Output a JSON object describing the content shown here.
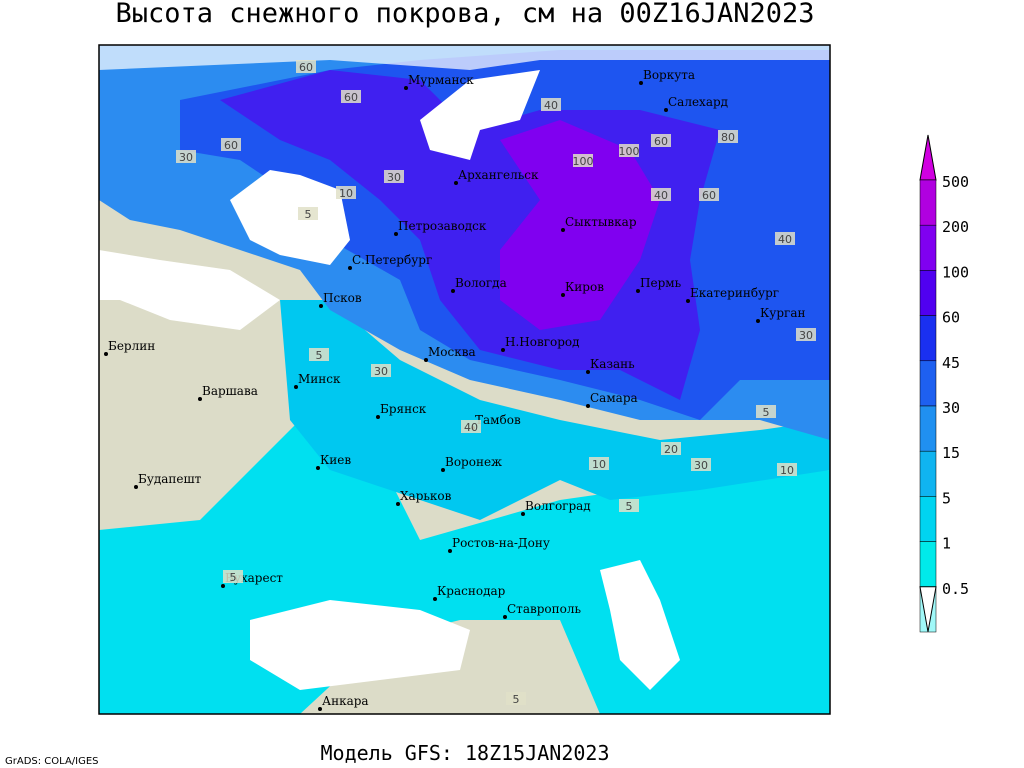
{
  "title": "Высота снежного покрова, см на 00Z16JAN2023",
  "footer_model": "Модель GFS: 18Z15JAN2023",
  "footer_credit": "GrADS: COLA/IGES",
  "legend": {
    "levels": [
      "500",
      "200",
      "100",
      "60",
      "45",
      "30",
      "15",
      "5",
      "1",
      "0.5"
    ]
  },
  "cities": [
    "Мурманск",
    "Воркута",
    "Салехард",
    "Архангельск",
    "Сыктывкар",
    "Петрозаводск",
    "С.Петербург",
    "Вологда",
    "Киров",
    "Пермь",
    "Екатеринбург",
    "Курган",
    "Псков",
    "Москва",
    "Н.Новгород",
    "Казань",
    "Берлин",
    "Минск",
    "Варшава",
    "Брянск",
    "Тамбов",
    "Самара",
    "Киев",
    "Воронеж",
    "Будапешт",
    "Харьков",
    "Волгоград",
    "Ростов-на-Дону",
    "Бухарест",
    "Краснодар",
    "Ставрополь",
    "Анкара"
  ],
  "contour_labels": [
    "60",
    "60",
    "30",
    "60",
    "40",
    "100",
    "100",
    "60",
    "80",
    "40",
    "60",
    "40",
    "10",
    "5",
    "30",
    "30",
    "40",
    "5",
    "30",
    "10",
    "5",
    "5",
    "10",
    "30",
    "20",
    "5",
    "5"
  ]
}
